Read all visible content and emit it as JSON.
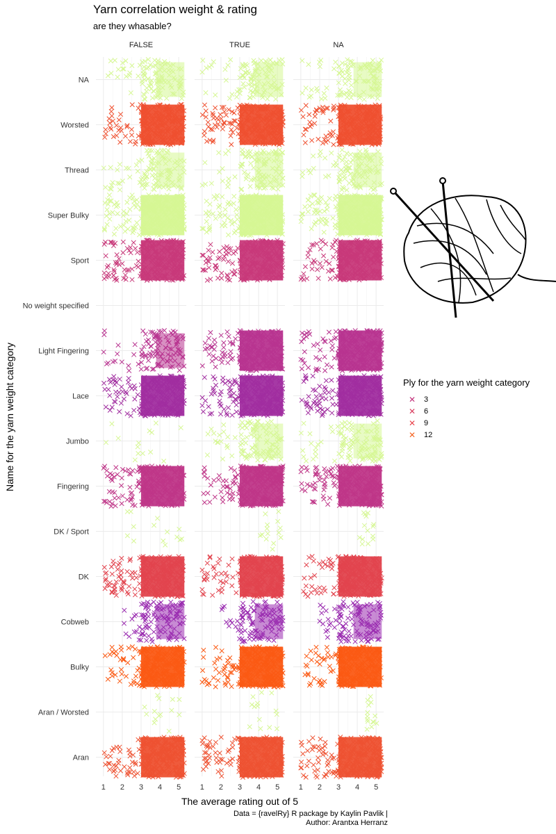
{
  "title": "Yarn correlation weight & rating",
  "subtitle": "are they whasable?",
  "caption_line1": "Data = {ravelRy} R package by Kaylin Pavlik |",
  "caption_line2": "Author: Arantxa Herranz",
  "legend": {
    "title": "Ply for the yarn weight category",
    "items": [
      {
        "label": "3",
        "color": "#c2307a"
      },
      {
        "label": "6",
        "color": "#d83a5c"
      },
      {
        "label": "9",
        "color": "#e8424a"
      },
      {
        "label": "12",
        "color": "#f4621f"
      }
    ]
  },
  "illustration": "yarn-ball-with-knitting-needles",
  "chart_data": {
    "type": "scatter",
    "title": "Yarn correlation weight & rating",
    "subtitle": "are they whasable?",
    "xlabel": "The average rating out of 5",
    "ylabel": "Name for the yarn weight category",
    "xlim": [
      0.6,
      5.4
    ],
    "x_ticks": [
      "1",
      "2",
      "3",
      "4",
      "5"
    ],
    "marker": "x",
    "jitter": true,
    "grid": true,
    "legend_position": "right",
    "facets": [
      "FALSE",
      "TRUE",
      "NA"
    ],
    "categories": [
      "NA",
      "Worsted",
      "Thread",
      "Super Bulky",
      "Sport",
      "No weight specified",
      "Light Fingering",
      "Lace",
      "Jumbo",
      "Fingering",
      "DK / Sport",
      "DK",
      "Cobweb",
      "Bulky",
      "Aran / Worsted",
      "Aran"
    ],
    "series": [
      {
        "category": "NA",
        "color": "#d6f794",
        "density": [
          "medium",
          "medium",
          "medium"
        ],
        "x_min": [
          1.0,
          1.0,
          1.0
        ]
      },
      {
        "category": "Worsted",
        "color": "#ef5030",
        "density": [
          "high",
          "high",
          "high"
        ],
        "x_min": [
          1.0,
          1.0,
          1.0
        ]
      },
      {
        "category": "Thread",
        "color": "#d6f794",
        "density": [
          "medium",
          "medium",
          "medium"
        ],
        "x_min": [
          1.0,
          1.0,
          1.0
        ]
      },
      {
        "category": "Super Bulky",
        "color": "#d6f794",
        "density": [
          "high",
          "high",
          "high"
        ],
        "x_min": [
          1.0,
          1.0,
          1.0
        ]
      },
      {
        "category": "Sport",
        "color": "#c8397a",
        "density": [
          "high",
          "high",
          "high"
        ],
        "x_min": [
          1.0,
          1.0,
          1.0
        ]
      },
      {
        "category": "No weight specified",
        "color": "#d6f794",
        "density": [
          "none",
          "none",
          "none"
        ],
        "x_min": [
          1.0,
          1.0,
          1.0
        ]
      },
      {
        "category": "Light Fingering",
        "color": "#b83490",
        "density": [
          "medium",
          "high",
          "high"
        ],
        "x_min": [
          1.0,
          1.0,
          1.0
        ]
      },
      {
        "category": "Lace",
        "color": "#a12ea0",
        "density": [
          "high",
          "high",
          "high"
        ],
        "x_min": [
          1.0,
          1.0,
          1.0
        ]
      },
      {
        "category": "Jumbo",
        "color": "#d6f794",
        "density": [
          "low",
          "medium",
          "medium"
        ],
        "x_min": [
          1.0,
          1.0,
          1.0
        ]
      },
      {
        "category": "Fingering",
        "color": "#bf3688",
        "density": [
          "high",
          "high",
          "high"
        ],
        "x_min": [
          1.0,
          1.0,
          1.0
        ]
      },
      {
        "category": "DK / Sport",
        "color": "#d6f794",
        "density": [
          "low",
          "low",
          "low"
        ],
        "x_min": [
          2.0,
          4.0,
          4.0
        ]
      },
      {
        "category": "DK",
        "color": "#e2444e",
        "density": [
          "high",
          "high",
          "high"
        ],
        "x_min": [
          1.0,
          1.0,
          1.0
        ]
      },
      {
        "category": "Cobweb",
        "color": "#9a2cb0",
        "density": [
          "medium",
          "medium",
          "medium"
        ],
        "x_min": [
          2.0,
          2.0,
          2.0
        ]
      },
      {
        "category": "Bulky",
        "color": "#fb5a14",
        "density": [
          "high",
          "high",
          "high"
        ],
        "x_min": [
          1.0,
          1.0,
          1.0
        ]
      },
      {
        "category": "Aran / Worsted",
        "color": "#d6f794",
        "density": [
          "low",
          "low",
          "low"
        ],
        "x_min": [
          3.0,
          3.5,
          4.5
        ]
      },
      {
        "category": "Aran",
        "color": "#ee5232",
        "density": [
          "high",
          "high",
          "high"
        ],
        "x_min": [
          1.0,
          1.0,
          1.0
        ]
      }
    ]
  }
}
